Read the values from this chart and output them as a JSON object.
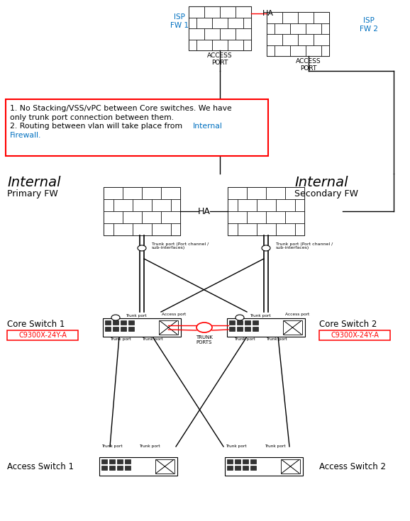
{
  "bg_color": "#ffffff",
  "note_line1": "1. No Stacking/VSS/vPC between Core switches. We have",
  "note_line2": "only trunk port connection between them.",
  "note_line3": "2. Routing between vlan will take place from Internal",
  "note_line3a": "2. Routing between vlan will take place from ",
  "note_line4": "Firewall.",
  "note_internal": "Internal",
  "isp_fw1_label": "ISP\nFW 1",
  "isp_fw2_label": "ISP\nFW 2",
  "ha_label_top": "HA",
  "ha_label_mid": "HA",
  "access_port_label": "ACCESS\nPORT",
  "trunk_port_label": "Trunk port (Port channel /\nsub-interfaces)",
  "trunk_port_short": "Trunk port",
  "access_port_short": "Access port",
  "core_sw1_label": "Core Switch 1",
  "core_sw2_label": "Core Switch 2",
  "core_sw1_model": "C9300X-24Y-A",
  "core_sw2_model": "C9300X-24Y-A",
  "access_sw1_label": "Access Switch 1",
  "access_sw2_label": "Access Switch 2",
  "trunk_ports_label": "TRUNK\nPORTS",
  "internal_label": "Internal",
  "primary_fw_label": "Primary FW",
  "secondary_fw_label": "Secondary FW",
  "red_color": "#ff0000",
  "blue_color": "#0070c0",
  "black_color": "#000000"
}
